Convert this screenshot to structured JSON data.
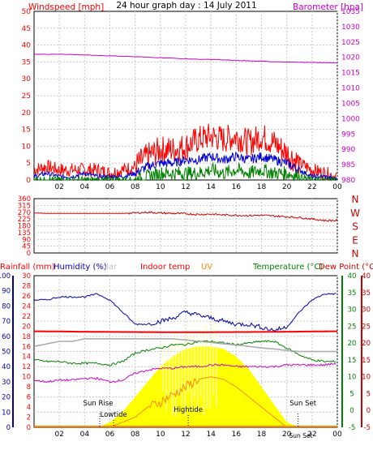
{
  "header": {
    "left_label": "Windspeed [mph]",
    "title": "24 hour graph day : 14 July 2011",
    "right_label": "Barometer [hpa]"
  },
  "colors": {
    "wind_gust": "#ff0000",
    "wind_avg": "#0000cc",
    "wind_low": "#008000",
    "barometer": "#cc00cc",
    "wind_dir": "#cc0000",
    "compass_text": "#cc0000",
    "humidity": "#0000aa",
    "indoor_temp": "#ff0000",
    "solar_fill": "#ffff00",
    "uv": "#ff8800",
    "temperature": "#008000",
    "dew_point": "#cc00cc",
    "solar_trace": "#cc8800",
    "grid": "#c8c8c8",
    "axis_rain": "#0000aa",
    "axis_temp": "#008000",
    "axis_dew": "#cc0000"
  },
  "chart_data": [
    {
      "type": "line",
      "name": "wind-and-barometer",
      "x_ticks": [
        "02",
        "04",
        "06",
        "08",
        "10",
        "12",
        "14",
        "16",
        "18",
        "20",
        "22",
        "00"
      ],
      "xlim": [
        0,
        24
      ],
      "y_left_ticks": [
        "0",
        "5",
        "10",
        "15",
        "20",
        "25",
        "30",
        "35",
        "40",
        "45",
        "50"
      ],
      "ylim_left": [
        0,
        50
      ],
      "y_right_ticks": [
        "980",
        "985",
        "990",
        "995",
        "1000",
        "1005",
        "1010",
        "1015",
        "1020",
        "1025",
        "1030",
        "1035"
      ],
      "ylim_right": [
        980,
        1035
      ],
      "series": [
        {
          "name": "Windspeed gust",
          "axis": "left",
          "x": [
            0,
            1,
            2,
            3,
            4,
            5,
            6,
            7,
            8,
            9,
            10,
            11,
            12,
            13,
            14,
            15,
            16,
            17,
            18,
            19,
            20,
            21,
            22,
            23,
            24
          ],
          "values": [
            3,
            4,
            3,
            3,
            3,
            3,
            2,
            3,
            4,
            7,
            9,
            9,
            10,
            12,
            13,
            12,
            13,
            11,
            13,
            11,
            8,
            5,
            3,
            2,
            1
          ]
        },
        {
          "name": "Windspeed average",
          "axis": "left",
          "x": [
            0,
            1,
            2,
            3,
            4,
            5,
            6,
            7,
            8,
            9,
            10,
            11,
            12,
            13,
            14,
            15,
            16,
            17,
            18,
            19,
            20,
            21,
            22,
            23,
            24
          ],
          "values": [
            1,
            2,
            1,
            1,
            2,
            1,
            1,
            1,
            2,
            4,
            5,
            5,
            6,
            6,
            7,
            6,
            7,
            6,
            7,
            6,
            5,
            3,
            1,
            1,
            0
          ]
        },
        {
          "name": "Windspeed low",
          "axis": "left",
          "x": [
            0,
            1,
            2,
            3,
            4,
            5,
            6,
            7,
            8,
            9,
            10,
            11,
            12,
            13,
            14,
            15,
            16,
            17,
            18,
            19,
            20,
            21,
            22,
            23,
            24
          ],
          "values": [
            0,
            0,
            0,
            0,
            0,
            0,
            0,
            0,
            0,
            1,
            2,
            2,
            2,
            2,
            3,
            2,
            3,
            2,
            3,
            2,
            2,
            1,
            0,
            0,
            0
          ]
        },
        {
          "name": "Barometer",
          "axis": "right",
          "x": [
            0,
            2,
            4,
            6,
            8,
            10,
            12,
            14,
            16,
            18,
            20,
            22,
            24
          ],
          "values": [
            1021,
            1021,
            1020.8,
            1020.5,
            1020.2,
            1019.9,
            1019.5,
            1019.3,
            1019,
            1018.7,
            1018.5,
            1018.3,
            1018.2
          ]
        }
      ]
    },
    {
      "type": "line",
      "name": "wind-direction",
      "x_ticks": [
        "02",
        "04",
        "06",
        "08",
        "10",
        "12",
        "14",
        "16",
        "18",
        "20",
        "22",
        "00"
      ],
      "xlim": [
        0,
        24
      ],
      "y_left_ticks": [
        "0",
        "45",
        "90",
        "135",
        "180",
        "225",
        "270",
        "315",
        "360"
      ],
      "ylim": [
        0,
        360
      ],
      "compass": [
        "N",
        "W",
        "S",
        "E",
        "N"
      ],
      "series": [
        {
          "name": "Wind direction",
          "x": [
            0,
            1,
            2,
            4,
            6,
            7,
            8,
            9,
            10,
            11,
            12,
            13,
            14,
            15,
            16,
            17,
            18,
            19,
            20,
            21,
            22,
            23,
            24
          ],
          "values": [
            265,
            262,
            262,
            262,
            262,
            262,
            265,
            270,
            265,
            262,
            260,
            255,
            258,
            252,
            250,
            248,
            250,
            245,
            240,
            235,
            225,
            215,
            215
          ]
        }
      ]
    },
    {
      "type": "area",
      "name": "rain-humidity-temperature",
      "x_ticks": [
        "02",
        "04",
        "06",
        "08",
        "10",
        "12",
        "14",
        "16",
        "18",
        "20",
        "22",
        "00"
      ],
      "xlim": [
        0,
        24
      ],
      "header_labels": {
        "rainfall": "Rainfall (mm)",
        "humidity": "Humidity (%)",
        "solar": "olar",
        "indoor": "Indoor temp",
        "uv": "UV",
        "temperature": "Temperature (°C)",
        "dew_point": "Dew Point (°C)"
      },
      "rain_ticks": [
        "0",
        "10",
        "20",
        "30",
        "40",
        "50",
        "60",
        "70",
        "80",
        "90",
        "100"
      ],
      "ylim_rain": [
        0,
        100
      ],
      "humidity_ticks": [
        "0",
        "2",
        "4",
        "6",
        "8",
        "10",
        "12",
        "14",
        "16",
        "18",
        "20",
        "22",
        "24",
        "26",
        "28",
        "30"
      ],
      "ylim_humidity": [
        0,
        30
      ],
      "temp_ticks": [
        "-5",
        "0",
        "5",
        "10",
        "15",
        "20",
        "25",
        "30",
        "35",
        "40"
      ],
      "ylim_temp": [
        -5,
        40
      ],
      "dew_ticks": [
        "-5",
        "0",
        "5",
        "10",
        "15",
        "20",
        "25",
        "30",
        "35",
        "40"
      ],
      "ylim_dew": [
        -5,
        40
      ],
      "annotations": [
        {
          "text": "Sun Rise",
          "x": 5.2
        },
        {
          "text": "Lowtide",
          "x": 6.3
        },
        {
          "text": "Hightide",
          "x": 12.2
        },
        {
          "text": "Sun Set",
          "x": 20.9
        },
        {
          "text": "Sun Set",
          "x": 21.5
        },
        {
          "text": "Sun Set",
          "x": 0
        }
      ],
      "series": [
        {
          "name": "Humidity",
          "axis": "rain",
          "x": [
            0,
            1,
            2,
            3,
            4,
            5,
            6,
            7,
            8,
            9,
            10,
            11,
            12,
            13,
            14,
            15,
            16,
            17,
            18,
            19,
            20,
            21,
            22,
            23,
            24
          ],
          "values": [
            84,
            84,
            86,
            86,
            86,
            88,
            84,
            76,
            68,
            68,
            70,
            72,
            76,
            74,
            72,
            70,
            68,
            68,
            66,
            64,
            66,
            76,
            84,
            88,
            88
          ]
        },
        {
          "name": "Indoor temp",
          "axis": "temp",
          "x": [
            0,
            6,
            12,
            18,
            24
          ],
          "values": [
            23.5,
            23.3,
            23.2,
            23.3,
            23.5
          ]
        },
        {
          "name": "Solar",
          "axis": "humidity",
          "x": [
            0,
            1,
            2,
            3,
            4,
            5,
            6,
            7,
            8,
            9,
            10,
            11,
            12,
            13,
            14,
            15,
            16,
            17,
            18,
            19,
            20,
            21,
            22,
            23,
            24
          ],
          "values": [
            16,
            16.5,
            17,
            17,
            17.5,
            17.5,
            17.5,
            17.5,
            17.5,
            17.5,
            17.5,
            17.5,
            17.3,
            17,
            16.8,
            16.5,
            16.3,
            16,
            15.7,
            15.5,
            15.2,
            15,
            15,
            15,
            15
          ]
        },
        {
          "name": "Temperature",
          "axis": "temp",
          "x": [
            0,
            1,
            2,
            3,
            4,
            5,
            6,
            7,
            8,
            9,
            10,
            11,
            12,
            13,
            14,
            15,
            16,
            17,
            18,
            19,
            20,
            21,
            22,
            23,
            24
          ],
          "values": [
            15,
            14.5,
            14.5,
            14,
            14,
            14,
            13.5,
            14.5,
            17,
            18,
            18.5,
            19.5,
            19.5,
            20.5,
            20.5,
            20,
            19.5,
            20,
            20.5,
            20.5,
            18.5,
            16.5,
            15,
            14.5,
            14.5
          ]
        },
        {
          "name": "Dew Point",
          "axis": "dew",
          "x": [
            0,
            1,
            2,
            3,
            4,
            5,
            6,
            7,
            8,
            9,
            10,
            11,
            12,
            13,
            14,
            15,
            16,
            17,
            18,
            19,
            20,
            21,
            22,
            23,
            24
          ],
          "values": [
            9,
            8.5,
            9,
            9,
            9.5,
            9.5,
            8.5,
            9,
            11,
            12,
            12.5,
            12.5,
            13,
            13,
            13.5,
            13.5,
            13,
            13,
            13,
            13,
            13.5,
            13.5,
            13.5,
            13.5,
            14
          ]
        },
        {
          "name": "Solar radiation",
          "axis": "humidity",
          "x": [
            5,
            6,
            7,
            8,
            9,
            10,
            11,
            12,
            13,
            14,
            15,
            16,
            17,
            18,
            19,
            20,
            21
          ],
          "values": [
            0,
            1,
            3,
            6,
            9,
            12,
            14,
            15.5,
            16,
            16,
            15.5,
            14,
            11.5,
            8,
            4.5,
            1,
            0
          ]
        },
        {
          "name": "UV",
          "axis": "humidity",
          "x": [
            6,
            7,
            8,
            9,
            10,
            11,
            12,
            13,
            14,
            15,
            16,
            17,
            18,
            19,
            20
          ],
          "values": [
            0,
            1,
            2,
            4,
            5,
            6.5,
            8,
            9.5,
            10,
            9.5,
            8,
            6,
            4,
            2,
            0
          ]
        },
        {
          "name": "Rainfall",
          "axis": "rain",
          "x": [
            0,
            24
          ],
          "values": [
            0,
            0
          ]
        }
      ]
    }
  ]
}
